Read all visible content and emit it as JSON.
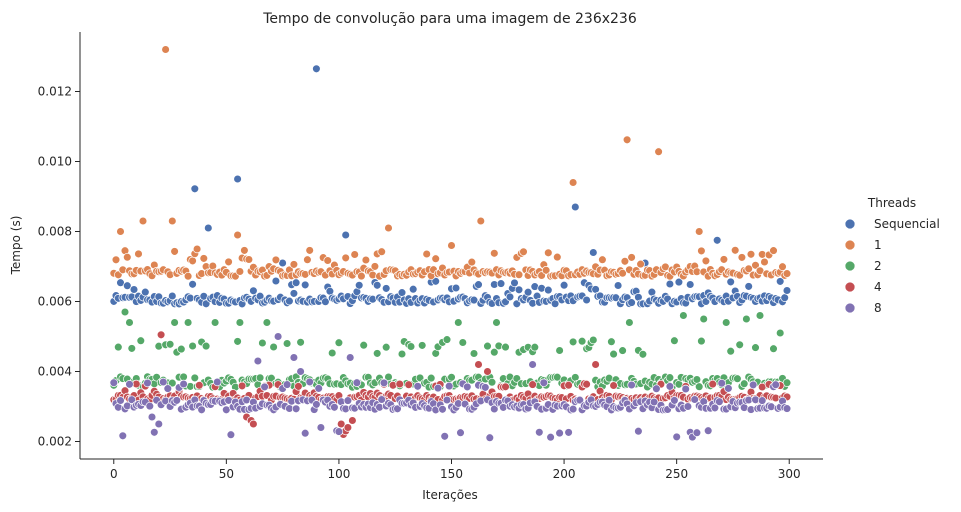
{
  "chart_data": {
    "type": "scatter",
    "title": "Tempo de convolução para uma imagem de 236x236",
    "xlabel": "Iterações",
    "ylabel": "Tempo (s)",
    "xlim": [
      -15,
      315
    ],
    "ylim": [
      0.0015,
      0.0137
    ],
    "xticks": [
      0,
      50,
      100,
      150,
      200,
      250,
      300
    ],
    "xtick_labels": [
      "0",
      "50",
      "100",
      "150",
      "200",
      "250",
      "300"
    ],
    "yticks": [
      0.002,
      0.004,
      0.006,
      0.008,
      0.01,
      0.012
    ],
    "ytick_labels": [
      "0.002",
      "0.004",
      "0.006",
      "0.008",
      "0.010",
      "0.012"
    ],
    "grid": false,
    "legend": {
      "title": "Threads",
      "placement": "right"
    },
    "n_points_per_series": 300,
    "series": [
      {
        "name": "Sequencial",
        "color": "#4c72b0",
        "typical_value": 0.00605,
        "typical_spread": 0.00012,
        "secondary_values": [
          0.0063,
          0.0065
        ],
        "outliers": [
          [
            36,
            0.00922
          ],
          [
            42,
            0.0081
          ],
          [
            55,
            0.0095
          ],
          [
            75,
            0.0071
          ],
          [
            90,
            0.01265
          ],
          [
            103,
            0.0079
          ],
          [
            205,
            0.0087
          ],
          [
            213,
            0.0074
          ],
          [
            236,
            0.0071
          ],
          [
            268,
            0.00775
          ]
        ]
      },
      {
        "name": "1",
        "color": "#dd8452",
        "typical_value": 0.00682,
        "typical_spread": 0.0001,
        "secondary_values": [
          0.007,
          0.0072,
          0.0074
        ],
        "outliers": [
          [
            3,
            0.008
          ],
          [
            13,
            0.0083
          ],
          [
            23,
            0.0132
          ],
          [
            26,
            0.0083
          ],
          [
            37,
            0.0075
          ],
          [
            55,
            0.0079
          ],
          [
            122,
            0.0081
          ],
          [
            150,
            0.0076
          ],
          [
            163,
            0.0083
          ],
          [
            204,
            0.0094
          ],
          [
            228,
            0.01062
          ],
          [
            242,
            0.01028
          ],
          [
            260,
            0.008
          ]
        ]
      },
      {
        "name": "2",
        "color": "#55a868",
        "typical_value": 0.0037,
        "typical_spread": 0.00015,
        "secondary_values": [
          0.0046,
          0.0048
        ],
        "outliers": [
          [
            5,
            0.0057
          ],
          [
            7,
            0.0054
          ],
          [
            27,
            0.0054
          ],
          [
            33,
            0.0054
          ],
          [
            45,
            0.0054
          ],
          [
            56,
            0.0054
          ],
          [
            68,
            0.0054
          ],
          [
            77,
            0.0048
          ],
          [
            153,
            0.0054
          ],
          [
            170,
            0.0054
          ],
          [
            229,
            0.0054
          ],
          [
            253,
            0.0056
          ],
          [
            262,
            0.0055
          ],
          [
            272,
            0.0054
          ],
          [
            281,
            0.0055
          ],
          [
            287,
            0.0056
          ],
          [
            296,
            0.0051
          ]
        ]
      },
      {
        "name": "4",
        "color": "#c44e52",
        "typical_value": 0.00325,
        "typical_spread": 7e-05,
        "secondary_values": [
          0.0034,
          0.0036
        ],
        "outliers": [
          [
            21,
            0.00505
          ],
          [
            59,
            0.0027
          ],
          [
            61,
            0.0026
          ],
          [
            62,
            0.0025
          ],
          [
            101,
            0.0025
          ],
          [
            102,
            0.0022
          ],
          [
            103,
            0.0023
          ],
          [
            104,
            0.0024
          ],
          [
            106,
            0.0026
          ],
          [
            162,
            0.0042
          ],
          [
            166,
            0.004
          ],
          [
            214,
            0.0042
          ]
        ]
      },
      {
        "name": "8",
        "color": "#8172b3",
        "typical_value": 0.00305,
        "typical_spread": 0.00015,
        "secondary_values": [
          0.0022,
          0.0036
        ],
        "outliers": [
          [
            17,
            0.0027
          ],
          [
            20,
            0.0025
          ],
          [
            64,
            0.0043
          ],
          [
            73,
            0.005
          ],
          [
            80,
            0.0044
          ],
          [
            83,
            0.004
          ],
          [
            92,
            0.0024
          ],
          [
            105,
            0.0044
          ],
          [
            186,
            0.0042
          ]
        ]
      }
    ]
  }
}
